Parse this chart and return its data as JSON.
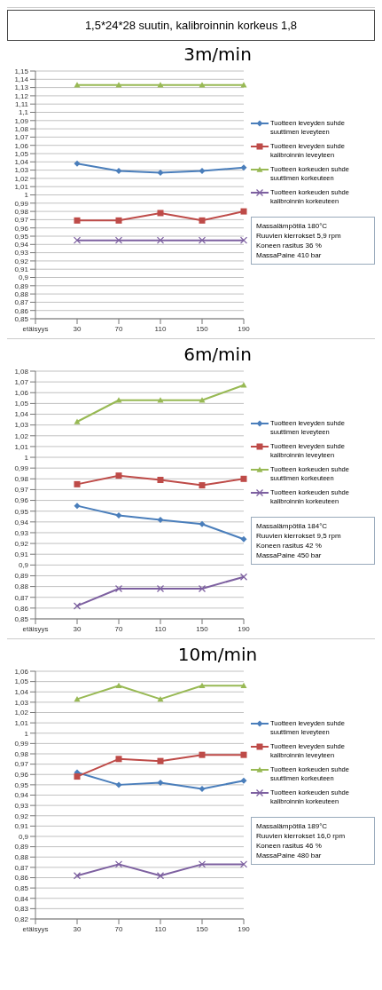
{
  "chart_data": [
    {
      "type": "line",
      "subtitle": "1,5*24*28 suutin, kalibroinnin korkeus 1,8",
      "title": "3m/min",
      "categories": [
        "etäisyys",
        "30",
        "70",
        "110",
        "150",
        "190"
      ],
      "legend": "right",
      "grid": "y",
      "ylim": [
        0.85,
        1.15
      ],
      "yticks": [
        {
          "value": 0.85,
          "label": "0,85"
        },
        {
          "value": 0.86,
          "label": "0,86"
        },
        {
          "value": 0.87,
          "label": "0,87"
        },
        {
          "value": 0.88,
          "label": "0,88"
        },
        {
          "value": 0.89,
          "label": "0,89"
        },
        {
          "value": 0.9,
          "label": "0,9"
        },
        {
          "value": 0.91,
          "label": "0,91"
        },
        {
          "value": 0.92,
          "label": "0,92"
        },
        {
          "value": 0.93,
          "label": "0,93"
        },
        {
          "value": 0.94,
          "label": "0,94"
        },
        {
          "value": 0.95,
          "label": "0,95"
        },
        {
          "value": 0.96,
          "label": "0,96"
        },
        {
          "value": 0.97,
          "label": "0,97"
        },
        {
          "value": 0.98,
          "label": "0,98"
        },
        {
          "value": 0.99,
          "label": "0,99"
        },
        {
          "value": 1,
          "label": "1"
        },
        {
          "value": 1.01,
          "label": "1,01"
        },
        {
          "value": 1.02,
          "label": "1,02"
        },
        {
          "value": 1.03,
          "label": "1,03"
        },
        {
          "value": 1.04,
          "label": "1,04"
        },
        {
          "value": 1.05,
          "label": "1,05"
        },
        {
          "value": 1.06,
          "label": "1,06"
        },
        {
          "value": 1.07,
          "label": "1,07"
        },
        {
          "value": 1.08,
          "label": "1,08"
        },
        {
          "value": 1.09,
          "label": "1,09"
        },
        {
          "value": 1.1,
          "label": "1,1"
        },
        {
          "value": 1.11,
          "label": "1,11"
        },
        {
          "value": 1.12,
          "label": "1,12"
        },
        {
          "value": 1.13,
          "label": "1,13"
        },
        {
          "value": 1.14,
          "label": "1,14"
        },
        {
          "value": 1.15,
          "label": "1,15"
        }
      ],
      "series": [
        {
          "name": "Tuotteen leveyden suhde suuttimen leveyteen",
          "color": "#4a7ebb",
          "marker": "diamond",
          "values": [
            null,
            1.038,
            1.029,
            1.027,
            1.029,
            1.033
          ]
        },
        {
          "name": "Tuotteen leveyden suhde kalibroinnin leveyteen",
          "color": "#be4b48",
          "marker": "square",
          "values": [
            null,
            0.969,
            0.969,
            0.978,
            0.969,
            0.98
          ]
        },
        {
          "name": "Tuotteen korkeuden suhde suuttimen korkeuteen",
          "color": "#98b954",
          "marker": "triangle",
          "values": [
            null,
            1.133,
            1.133,
            1.133,
            1.133,
            1.133
          ]
        },
        {
          "name": "Tuotteen korkeuden suhde kalibroinnin korkeuteen",
          "color": "#7d60a0",
          "marker": "cross",
          "values": [
            null,
            0.945,
            0.945,
            0.945,
            0.945,
            0.945
          ]
        }
      ],
      "annotations": [
        "Massalämpötila 180°C",
        "Ruuvien kierrokset 5,9 rpm",
        "Koneen rasitus 36 %",
        "MassaPaine 410 bar"
      ]
    },
    {
      "type": "line",
      "title": "6m/min",
      "categories": [
        "etäisyys",
        "30",
        "70",
        "110",
        "150",
        "190"
      ],
      "legend": "right",
      "grid": "y",
      "ylim": [
        0.85,
        1.08
      ],
      "yticks": [
        {
          "value": 0.85,
          "label": "0,85"
        },
        {
          "value": 0.86,
          "label": "0,86"
        },
        {
          "value": 0.87,
          "label": "0,87"
        },
        {
          "value": 0.88,
          "label": "0,88"
        },
        {
          "value": 0.89,
          "label": "0,89"
        },
        {
          "value": 0.9,
          "label": "0,9"
        },
        {
          "value": 0.91,
          "label": "0,91"
        },
        {
          "value": 0.92,
          "label": "0,92"
        },
        {
          "value": 0.93,
          "label": "0,93"
        },
        {
          "value": 0.94,
          "label": "0,94"
        },
        {
          "value": 0.95,
          "label": "0,95"
        },
        {
          "value": 0.96,
          "label": "0,96"
        },
        {
          "value": 0.97,
          "label": "0,97"
        },
        {
          "value": 0.98,
          "label": "0,98"
        },
        {
          "value": 0.99,
          "label": "0,99"
        },
        {
          "value": 1,
          "label": "1"
        },
        {
          "value": 1.01,
          "label": "1,01"
        },
        {
          "value": 1.02,
          "label": "1,02"
        },
        {
          "value": 1.03,
          "label": "1,03"
        },
        {
          "value": 1.04,
          "label": "1,04"
        },
        {
          "value": 1.05,
          "label": "1,05"
        },
        {
          "value": 1.06,
          "label": "1,06"
        },
        {
          "value": 1.07,
          "label": "1,07"
        },
        {
          "value": 1.08,
          "label": "1,08"
        }
      ],
      "series": [
        {
          "name": "Tuotteen leveyden suhde suuttimen leveyteen",
          "color": "#4a7ebb",
          "marker": "diamond",
          "values": [
            null,
            0.955,
            0.946,
            0.942,
            0.938,
            0.924
          ]
        },
        {
          "name": "Tuotteen leveyden suhde kalibroinnin leveyteen",
          "color": "#be4b48",
          "marker": "square",
          "values": [
            null,
            0.975,
            0.983,
            0.979,
            0.974,
            0.98
          ]
        },
        {
          "name": "Tuotteen korkeuden suhde suuttimen korkeuteen",
          "color": "#98b954",
          "marker": "triangle",
          "values": [
            null,
            1.033,
            1.053,
            1.053,
            1.053,
            1.067
          ]
        },
        {
          "name": "Tuotteen korkeuden suhde kalibroinnin korkeuteen",
          "color": "#7d60a0",
          "marker": "cross",
          "values": [
            null,
            0.862,
            0.878,
            0.878,
            0.878,
            0.889
          ]
        }
      ],
      "annotations": [
        "Massalämpötila 184°C",
        "Ruuvien kierrokset 9,5 rpm",
        "Koneen rasitus 42 %",
        "MassaPaine 450 bar"
      ]
    },
    {
      "type": "line",
      "title": "10m/min",
      "categories": [
        "etäisyys",
        "30",
        "70",
        "110",
        "150",
        "190"
      ],
      "legend": "right",
      "grid": "y",
      "ylim": [
        0.82,
        1.06
      ],
      "yticks": [
        {
          "value": 0.82,
          "label": "0,82"
        },
        {
          "value": 0.83,
          "label": "0,83"
        },
        {
          "value": 0.84,
          "label": "0,84"
        },
        {
          "value": 0.85,
          "label": "0,85"
        },
        {
          "value": 0.86,
          "label": "0,86"
        },
        {
          "value": 0.87,
          "label": "0,87"
        },
        {
          "value": 0.88,
          "label": "0,88"
        },
        {
          "value": 0.89,
          "label": "0,89"
        },
        {
          "value": 0.9,
          "label": "0,9"
        },
        {
          "value": 0.91,
          "label": "0,91"
        },
        {
          "value": 0.92,
          "label": "0,92"
        },
        {
          "value": 0.93,
          "label": "0,93"
        },
        {
          "value": 0.94,
          "label": "0,94"
        },
        {
          "value": 0.95,
          "label": "0,95"
        },
        {
          "value": 0.96,
          "label": "0,96"
        },
        {
          "value": 0.97,
          "label": "0,97"
        },
        {
          "value": 0.98,
          "label": "0,98"
        },
        {
          "value": 0.99,
          "label": "0,99"
        },
        {
          "value": 1,
          "label": "1"
        },
        {
          "value": 1.01,
          "label": "1,01"
        },
        {
          "value": 1.02,
          "label": "1,02"
        },
        {
          "value": 1.03,
          "label": "1,03"
        },
        {
          "value": 1.04,
          "label": "1,04"
        },
        {
          "value": 1.05,
          "label": "1,05"
        },
        {
          "value": 1.06,
          "label": "1,06"
        }
      ],
      "series": [
        {
          "name": "Tuotteen leveyden suhde suuttimen leveyteen",
          "color": "#4a7ebb",
          "marker": "diamond",
          "values": [
            null,
            0.962,
            0.95,
            0.952,
            0.946,
            0.954
          ]
        },
        {
          "name": "Tuotteen leveyden suhde kalibroinnin leveyteen",
          "color": "#be4b48",
          "marker": "square",
          "values": [
            null,
            0.958,
            0.975,
            0.973,
            0.979,
            0.979
          ]
        },
        {
          "name": "Tuotteen korkeuden suhde suuttimen korkeuteen",
          "color": "#98b954",
          "marker": "triangle",
          "values": [
            null,
            1.033,
            1.046,
            1.033,
            1.046,
            1.046
          ]
        },
        {
          "name": "Tuotteen korkeuden suhde kalibroinnin korkeuteen",
          "color": "#7d60a0",
          "marker": "cross",
          "values": [
            null,
            0.862,
            0.873,
            0.862,
            0.873,
            0.873
          ]
        }
      ],
      "annotations": [
        "Massalämpötila 189°C",
        "Ruuvien kierrokset 16,0 rpm",
        "Koneen rasitus 46 %",
        "MassaPaine 480 bar"
      ]
    }
  ]
}
